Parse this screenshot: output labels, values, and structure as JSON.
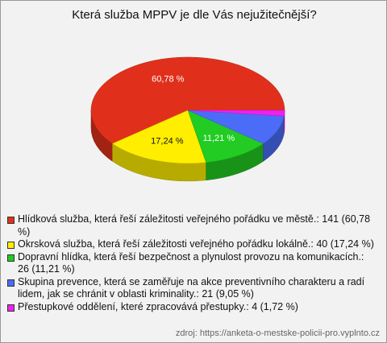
{
  "chart_data": {
    "type": "pie",
    "title": "Která služba MPPV je dle Vás nejužitečnější?",
    "values": [
      60.78,
      17.24,
      11.21,
      9.05,
      1.72
    ],
    "value_labels": [
      "60,78 %",
      "17,24 %",
      "11,21 %",
      null,
      null
    ],
    "legend_labels": [
      "Hlídková služba, která řeší záležitosti veřejného pořádku ve městě.: 141 (60,78 %)",
      "Okrsková služba, která řeší záležitosti veřejného pořádku lokálně.: 40 (17,24 %)",
      "Dopravní hlídka, která řeší bezpečnost a plynulost provozu na komunikacích.: 26 (11,21 %)",
      "Skupina prevence, která se zaměřuje na akce preventivního charakteru a radí lidem, jak se chránit v oblasti kriminality.: 21 (9,05 %)",
      "Přestupkové oddělení, které zpracovává přestupky.: 4 (1,72 %)"
    ],
    "colors": [
      "#e0301c",
      "#ffee00",
      "#22cc22",
      "#4a6cf7",
      "#ee22ee"
    ],
    "source": "zdroj: https://anketa-o-mestske-policii-pro.vyplnto.cz"
  }
}
